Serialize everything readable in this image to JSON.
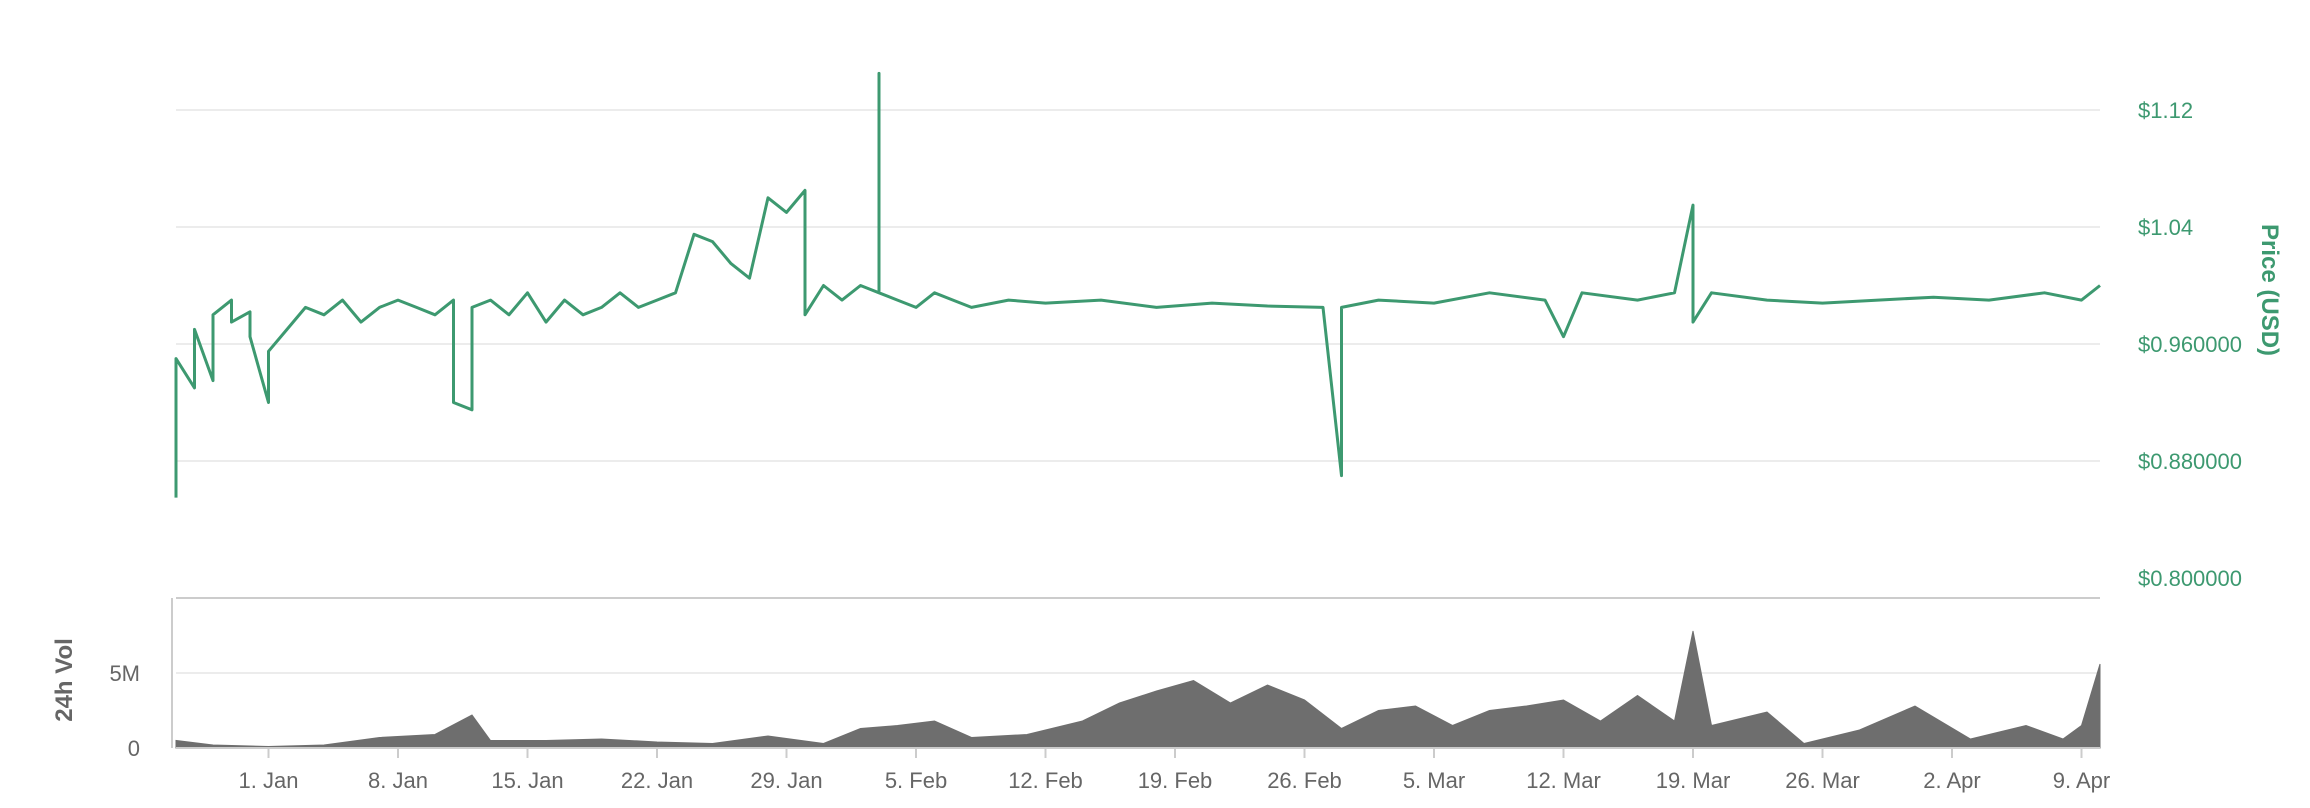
{
  "chart_data": {
    "type": "line",
    "price_axis": {
      "label": "Price (USD)",
      "ticks": [
        {
          "value": 0.8,
          "label": "$0.800000"
        },
        {
          "value": 0.88,
          "label": "$0.880000"
        },
        {
          "value": 0.96,
          "label": "$0.960000"
        },
        {
          "value": 1.04,
          "label": "$1.04"
        },
        {
          "value": 1.12,
          "label": "$1.12"
        }
      ],
      "ylim": [
        0.8,
        1.12
      ]
    },
    "volume_axis": {
      "label": "24h Vol",
      "ticks": [
        {
          "value": 0,
          "label": "0"
        },
        {
          "value": 5000000,
          "label": "5M"
        }
      ],
      "ylim": [
        0,
        10000000
      ]
    },
    "x_axis": {
      "ticks": [
        {
          "date": "2018-01-01",
          "label": "1. Jan"
        },
        {
          "date": "2018-01-08",
          "label": "8. Jan"
        },
        {
          "date": "2018-01-15",
          "label": "15. Jan"
        },
        {
          "date": "2018-01-22",
          "label": "22. Jan"
        },
        {
          "date": "2018-01-29",
          "label": "29. Jan"
        },
        {
          "date": "2018-02-05",
          "label": "5. Feb"
        },
        {
          "date": "2018-02-12",
          "label": "12. Feb"
        },
        {
          "date": "2018-02-19",
          "label": "19. Feb"
        },
        {
          "date": "2018-02-26",
          "label": "26. Feb"
        },
        {
          "date": "2018-03-05",
          "label": "5. Mar"
        },
        {
          "date": "2018-03-12",
          "label": "12. Mar"
        },
        {
          "date": "2018-03-19",
          "label": "19. Mar"
        },
        {
          "date": "2018-03-26",
          "label": "26. Mar"
        },
        {
          "date": "2018-04-02",
          "label": "2. Apr"
        },
        {
          "date": "2018-04-09",
          "label": "9. Apr"
        }
      ],
      "range": [
        "2017-12-27",
        "2018-04-10"
      ]
    },
    "grid": true,
    "colors": {
      "price": "#3d9970",
      "volume": "#6e6e6e",
      "grid": "#e6e6e6",
      "axis_label": "#666666"
    },
    "series": [
      {
        "type": "line",
        "axis": "price",
        "points": [
          [
            "2017-12-27",
            0.855
          ],
          [
            "2017-12-27",
            0.95
          ],
          [
            "2017-12-28",
            0.93
          ],
          [
            "2017-12-28",
            0.97
          ],
          [
            "2017-12-29",
            0.935
          ],
          [
            "2017-12-29",
            0.98
          ],
          [
            "2017-12-30",
            0.99
          ],
          [
            "2017-12-30",
            0.975
          ],
          [
            "2017-12-31",
            0.982
          ],
          [
            "2017-12-31",
            0.965
          ],
          [
            "2018-01-01",
            0.92
          ],
          [
            "2018-01-01",
            0.955
          ],
          [
            "2018-01-02",
            0.97
          ],
          [
            "2018-01-03",
            0.985
          ],
          [
            "2018-01-04",
            0.98
          ],
          [
            "2018-01-05",
            0.99
          ],
          [
            "2018-01-06",
            0.975
          ],
          [
            "2018-01-07",
            0.985
          ],
          [
            "2018-01-08",
            0.99
          ],
          [
            "2018-01-09",
            0.985
          ],
          [
            "2018-01-10",
            0.98
          ],
          [
            "2018-01-11",
            0.99
          ],
          [
            "2018-01-11",
            0.92
          ],
          [
            "2018-01-12",
            0.915
          ],
          [
            "2018-01-12",
            0.985
          ],
          [
            "2018-01-13",
            0.99
          ],
          [
            "2018-01-14",
            0.98
          ],
          [
            "2018-01-15",
            0.995
          ],
          [
            "2018-01-16",
            0.975
          ],
          [
            "2018-01-17",
            0.99
          ],
          [
            "2018-01-18",
            0.98
          ],
          [
            "2018-01-19",
            0.985
          ],
          [
            "2018-01-20",
            0.995
          ],
          [
            "2018-01-21",
            0.985
          ],
          [
            "2018-01-22",
            0.99
          ],
          [
            "2018-01-23",
            0.995
          ],
          [
            "2018-01-24",
            1.035
          ],
          [
            "2018-01-25",
            1.03
          ],
          [
            "2018-01-26",
            1.015
          ],
          [
            "2018-01-27",
            1.005
          ],
          [
            "2018-01-28",
            1.06
          ],
          [
            "2018-01-29",
            1.05
          ],
          [
            "2018-01-30",
            1.065
          ],
          [
            "2018-01-30",
            0.98
          ],
          [
            "2018-01-31",
            1.0
          ],
          [
            "2018-02-01",
            0.99
          ],
          [
            "2018-02-02",
            1.0
          ],
          [
            "2018-02-03",
            0.995
          ],
          [
            "2018-02-03",
            1.145
          ],
          [
            "2018-02-03",
            0.995
          ],
          [
            "2018-02-04",
            0.99
          ],
          [
            "2018-02-05",
            0.985
          ],
          [
            "2018-02-06",
            0.995
          ],
          [
            "2018-02-07",
            0.99
          ],
          [
            "2018-02-08",
            0.985
          ],
          [
            "2018-02-10",
            0.99
          ],
          [
            "2018-02-12",
            0.988
          ],
          [
            "2018-02-15",
            0.99
          ],
          [
            "2018-02-18",
            0.985
          ],
          [
            "2018-02-21",
            0.988
          ],
          [
            "2018-02-24",
            0.986
          ],
          [
            "2018-02-27",
            0.985
          ],
          [
            "2018-02-28",
            0.87
          ],
          [
            "2018-02-28",
            0.985
          ],
          [
            "2018-03-02",
            0.99
          ],
          [
            "2018-03-05",
            0.988
          ],
          [
            "2018-03-08",
            0.995
          ],
          [
            "2018-03-11",
            0.99
          ],
          [
            "2018-03-12",
            0.965
          ],
          [
            "2018-03-13",
            0.995
          ],
          [
            "2018-03-16",
            0.99
          ],
          [
            "2018-03-18",
            0.995
          ],
          [
            "2018-03-19",
            1.055
          ],
          [
            "2018-03-19",
            0.975
          ],
          [
            "2018-03-20",
            0.995
          ],
          [
            "2018-03-23",
            0.99
          ],
          [
            "2018-03-26",
            0.988
          ],
          [
            "2018-03-29",
            0.99
          ],
          [
            "2018-04-01",
            0.992
          ],
          [
            "2018-04-04",
            0.99
          ],
          [
            "2018-04-07",
            0.995
          ],
          [
            "2018-04-09",
            0.99
          ],
          [
            "2018-04-10",
            1.0
          ]
        ]
      },
      {
        "type": "area",
        "axis": "volume",
        "points": [
          [
            "2017-12-27",
            0.5
          ],
          [
            "2017-12-29",
            0.2
          ],
          [
            "2018-01-01",
            0.1
          ],
          [
            "2018-01-04",
            0.2
          ],
          [
            "2018-01-07",
            0.7
          ],
          [
            "2018-01-10",
            0.9
          ],
          [
            "2018-01-12",
            2.2
          ],
          [
            "2018-01-13",
            0.5
          ],
          [
            "2018-01-16",
            0.5
          ],
          [
            "2018-01-19",
            0.6
          ],
          [
            "2018-01-22",
            0.4
          ],
          [
            "2018-01-25",
            0.3
          ],
          [
            "2018-01-28",
            0.8
          ],
          [
            "2018-01-31",
            0.3
          ],
          [
            "2018-02-02",
            1.3
          ],
          [
            "2018-02-04",
            1.5
          ],
          [
            "2018-02-06",
            1.8
          ],
          [
            "2018-02-08",
            0.7
          ],
          [
            "2018-02-11",
            0.9
          ],
          [
            "2018-02-14",
            1.8
          ],
          [
            "2018-02-16",
            3.0
          ],
          [
            "2018-02-18",
            3.8
          ],
          [
            "2018-02-20",
            4.5
          ],
          [
            "2018-02-22",
            3.0
          ],
          [
            "2018-02-24",
            4.2
          ],
          [
            "2018-02-26",
            3.2
          ],
          [
            "2018-02-28",
            1.3
          ],
          [
            "2018-03-02",
            2.5
          ],
          [
            "2018-03-04",
            2.8
          ],
          [
            "2018-03-06",
            1.5
          ],
          [
            "2018-03-08",
            2.5
          ],
          [
            "2018-03-10",
            2.8
          ],
          [
            "2018-03-12",
            3.2
          ],
          [
            "2018-03-14",
            1.8
          ],
          [
            "2018-03-16",
            3.5
          ],
          [
            "2018-03-18",
            1.8
          ],
          [
            "2018-03-19",
            7.8
          ],
          [
            "2018-03-20",
            1.5
          ],
          [
            "2018-03-23",
            2.4
          ],
          [
            "2018-03-25",
            0.3
          ],
          [
            "2018-03-28",
            1.2
          ],
          [
            "2018-03-31",
            2.8
          ],
          [
            "2018-04-03",
            0.6
          ],
          [
            "2018-04-06",
            1.5
          ],
          [
            "2018-04-08",
            0.6
          ],
          [
            "2018-04-09",
            1.5
          ],
          [
            "2018-04-10",
            5.6
          ]
        ]
      }
    ]
  }
}
